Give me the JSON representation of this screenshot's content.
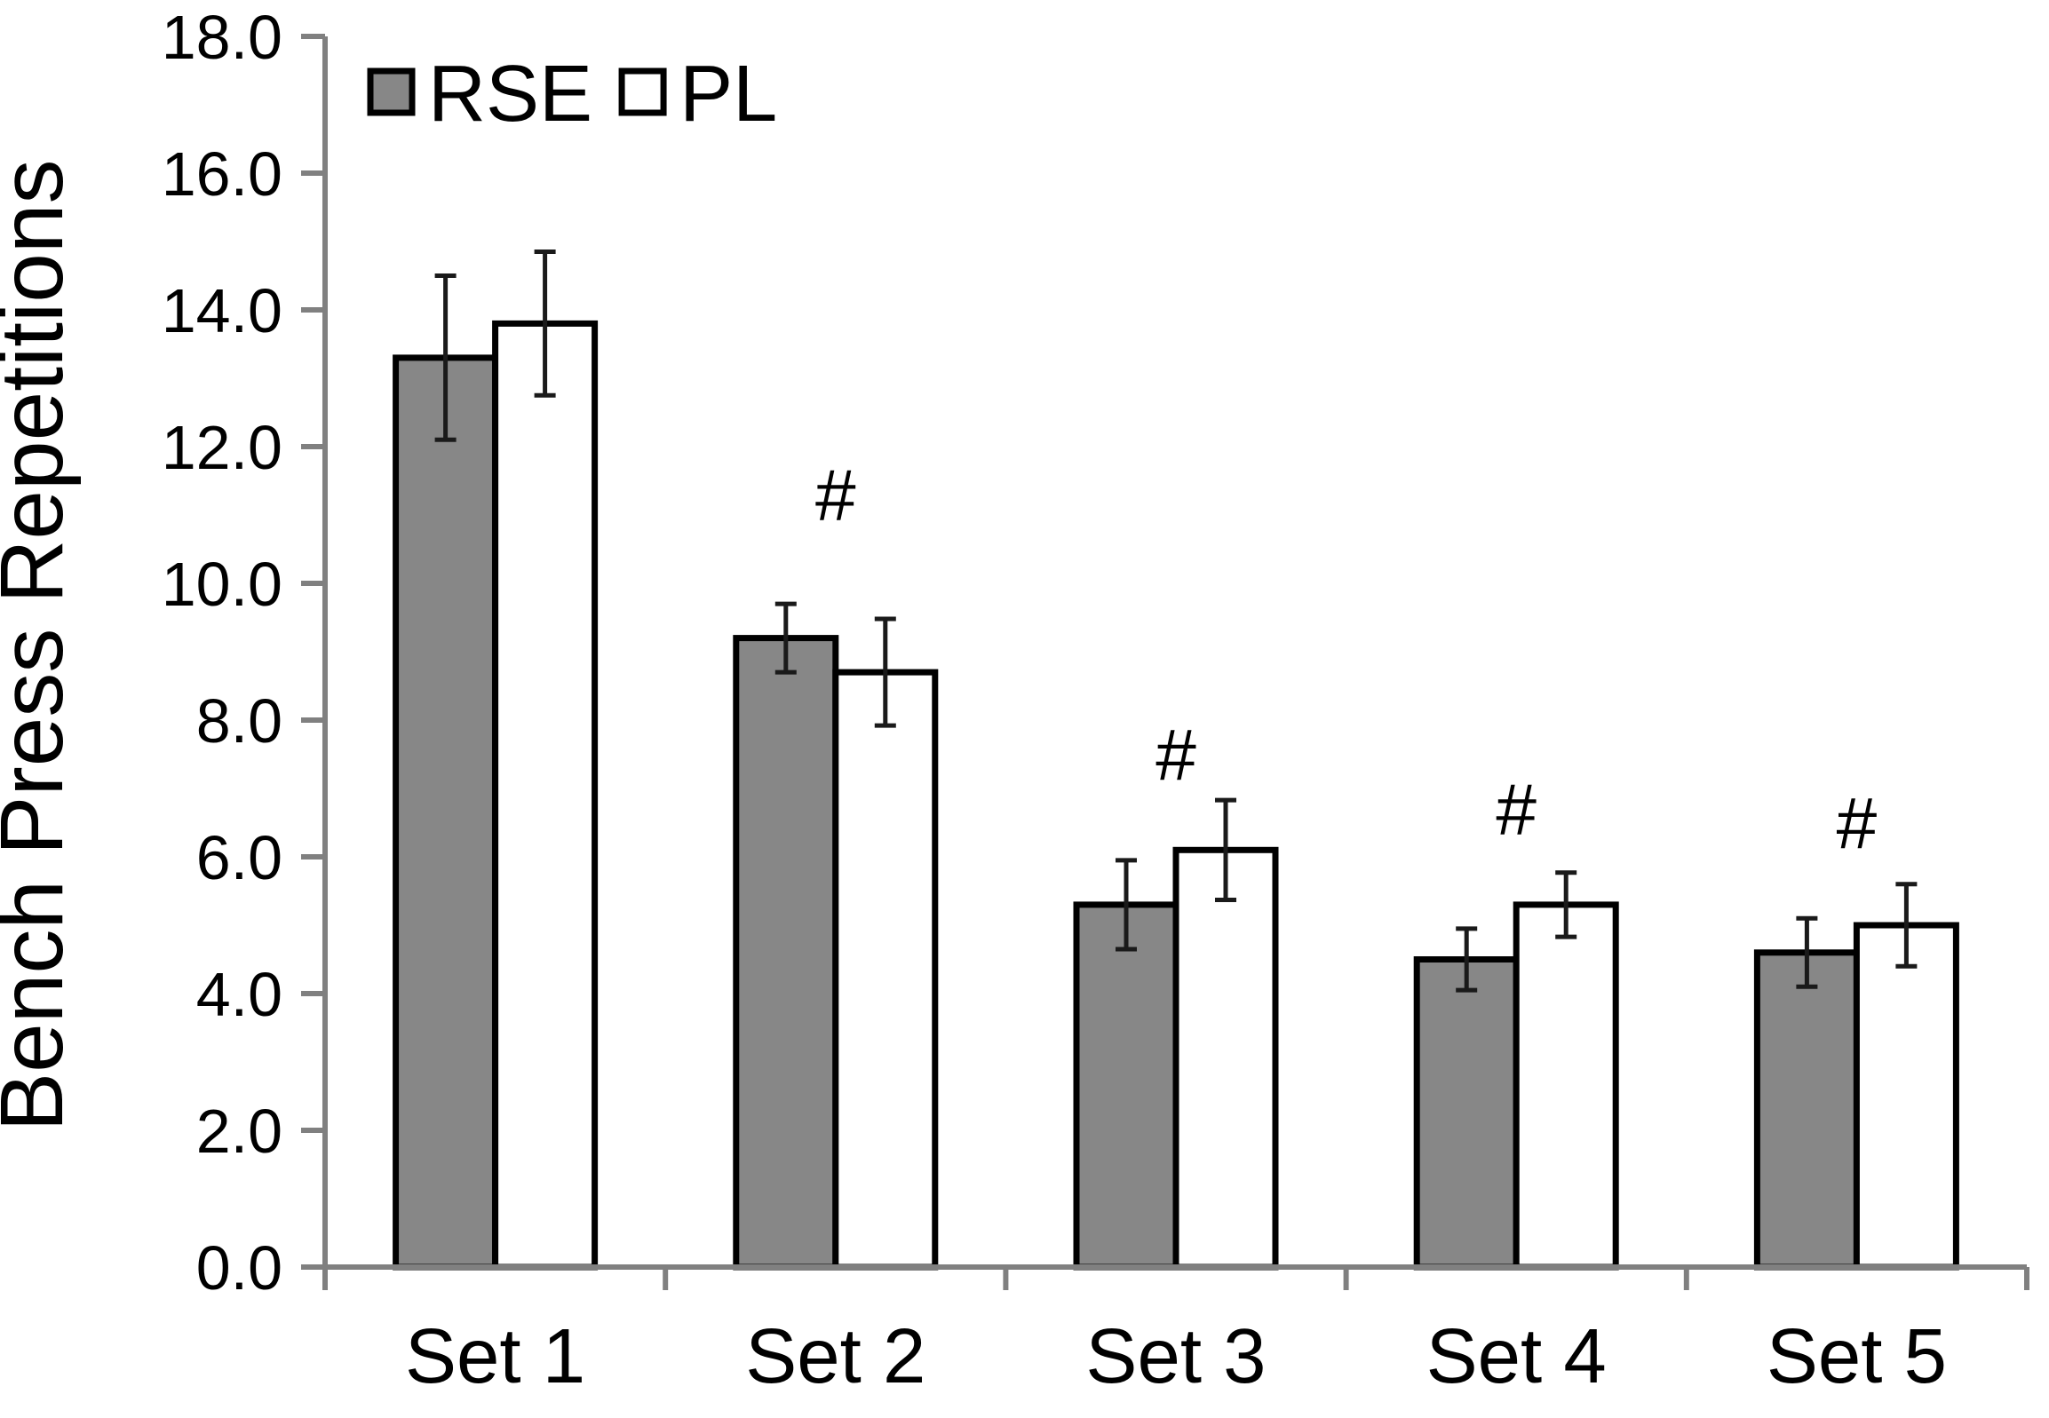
{
  "chart_data": {
    "type": "bar",
    "title": "",
    "ylabel": "Bench Press Repetitions",
    "xlabel": "",
    "categories": [
      "Set 1",
      "Set 2",
      "Set 3",
      "Set 4",
      "Set 5"
    ],
    "series": [
      {
        "name": "RSE",
        "fill": "#878787",
        "values": [
          13.3,
          9.2,
          5.3,
          4.5,
          4.6
        ],
        "errors": [
          1.2,
          0.5,
          0.65,
          0.45,
          0.5
        ]
      },
      {
        "name": "PL",
        "fill": "#ffffff",
        "values": [
          13.8,
          8.7,
          6.1,
          5.3,
          5.0
        ],
        "errors": [
          1.05,
          0.78,
          0.73,
          0.47,
          0.6
        ]
      }
    ],
    "annotations": [
      {
        "category": "Set 2",
        "symbol": "#",
        "y": 11.3
      },
      {
        "category": "Set 3",
        "symbol": "#",
        "y": 7.5
      },
      {
        "category": "Set 4",
        "symbol": "#",
        "y": 6.7
      },
      {
        "category": "Set 5",
        "symbol": "#",
        "y": 6.5
      }
    ],
    "y_axis": {
      "min": 0,
      "max": 18,
      "step": 2
    },
    "legend": {
      "position": "top-left",
      "entries": [
        "RSE",
        "PL"
      ]
    },
    "grid": false,
    "axis_color": "#808080",
    "bar_border_color": "#000000",
    "error_bar_color": "#1a1a1a"
  }
}
